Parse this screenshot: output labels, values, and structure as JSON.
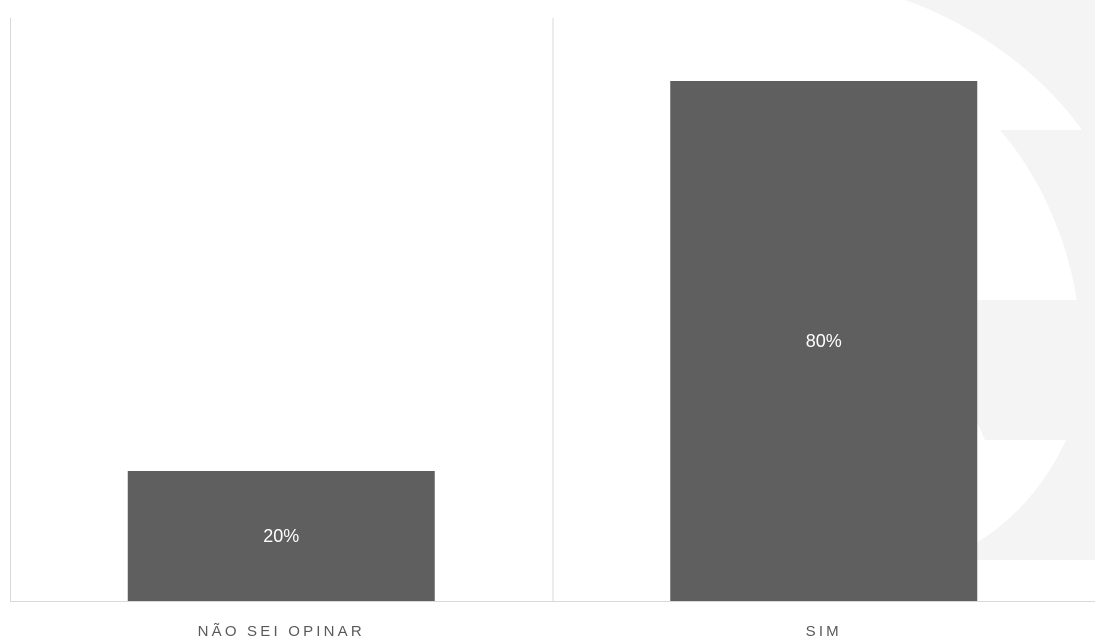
{
  "chart_data": {
    "type": "bar",
    "categories": [
      "NÃO SEI OPINAR",
      "SIM"
    ],
    "values": [
      20,
      80
    ],
    "data_labels": [
      "20%",
      "80%"
    ],
    "ylim": [
      0,
      100
    ],
    "grid": false,
    "legend": "none",
    "title": "",
    "xlabel": "",
    "ylabel": ""
  },
  "colors": {
    "bar": "#5f5f5f",
    "axis": "#d9d9d9",
    "background": "#ffffff",
    "watermark": "#f4f4f4",
    "label_text": "#595959",
    "data_label_text": "#ffffff"
  }
}
